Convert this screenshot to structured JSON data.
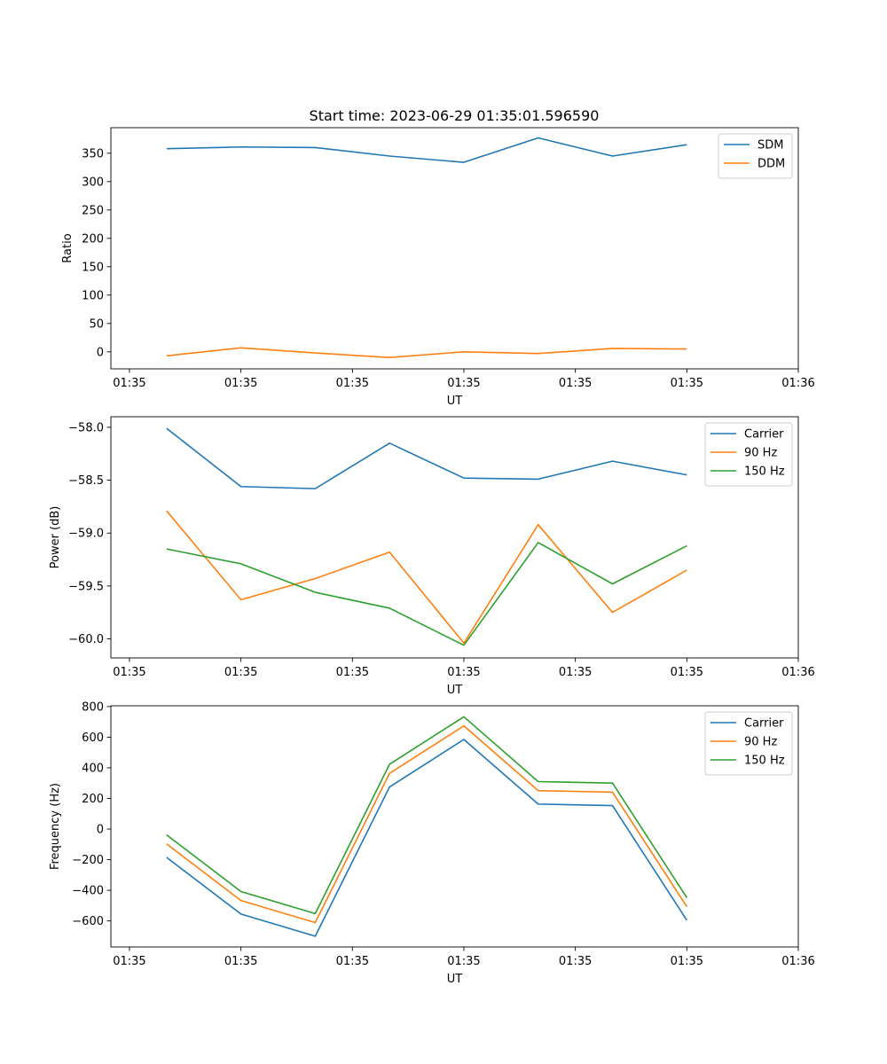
{
  "suptitle": "Start time: 2023-06-29 01:35:01.596590",
  "chart_data": [
    {
      "type": "line",
      "title": "Start time: 2023-06-29 01:35:01.596590",
      "xlabel": "UT",
      "ylabel": "Ratio",
      "x": [
        1,
        2,
        3,
        4,
        5,
        6,
        7,
        8
      ],
      "xlim": [
        0.25,
        9.5
      ],
      "ylim": [
        -30,
        395
      ],
      "yticks": [
        0,
        50,
        100,
        150,
        200,
        250,
        300,
        350
      ],
      "ytick_labels": [
        "0",
        "50",
        "100",
        "150",
        "200",
        "250",
        "300",
        "350"
      ],
      "xticks": [
        0.5,
        2,
        3.5,
        5,
        6.5,
        8,
        9.5
      ],
      "xtick_labels": [
        "01:35",
        "01:35",
        "01:35",
        "01:35",
        "01:35",
        "01:35",
        "01:36"
      ],
      "legend_position": "upper right",
      "grid": false,
      "series": [
        {
          "name": "SDM",
          "color": "#1f77b4",
          "values": [
            358,
            361,
            360,
            345,
            334,
            377,
            345,
            365
          ]
        },
        {
          "name": "DDM",
          "color": "#ff7f0e",
          "values": [
            -7,
            7,
            -2,
            -10,
            0,
            -3,
            6,
            5
          ]
        }
      ]
    },
    {
      "type": "line",
      "xlabel": "UT",
      "ylabel": "Power (dB)",
      "x": [
        1,
        2,
        3,
        4,
        5,
        6,
        7,
        8
      ],
      "xlim": [
        0.25,
        9.5
      ],
      "ylim": [
        -60.18,
        -57.9
      ],
      "yticks": [
        -60.0,
        -59.5,
        -59.0,
        -58.5,
        -58.0
      ],
      "ytick_labels": [
        "−60.0",
        "−59.5",
        "−59.0",
        "−58.5",
        "−58.0"
      ],
      "xticks": [
        0.5,
        2,
        3.5,
        5,
        6.5,
        8,
        9.5
      ],
      "xtick_labels": [
        "01:35",
        "01:35",
        "01:35",
        "01:35",
        "01:35",
        "01:35",
        "01:36"
      ],
      "legend_position": "upper right",
      "grid": false,
      "series": [
        {
          "name": "Carrier",
          "color": "#1f77b4",
          "values": [
            -58.01,
            -58.56,
            -58.58,
            -58.15,
            -58.48,
            -58.49,
            -58.32,
            -58.45
          ]
        },
        {
          "name": "90 Hz",
          "color": "#ff7f0e",
          "values": [
            -58.79,
            -59.63,
            -59.43,
            -59.18,
            -60.04,
            -58.92,
            -59.75,
            -59.35
          ]
        },
        {
          "name": "150 Hz",
          "color": "#2ca02c",
          "values": [
            -59.15,
            -59.29,
            -59.56,
            -59.71,
            -60.06,
            -59.09,
            -59.48,
            -59.12
          ]
        }
      ]
    },
    {
      "type": "line",
      "xlabel": "UT",
      "ylabel": "Frequency (Hz)",
      "x": [
        1,
        2,
        3,
        4,
        5,
        6,
        7,
        8
      ],
      "xlim": [
        0.25,
        9.5
      ],
      "ylim": [
        -770,
        805
      ],
      "yticks": [
        -600,
        -400,
        -200,
        0,
        200,
        400,
        600,
        800
      ],
      "ytick_labels": [
        "−600",
        "−400",
        "−200",
        "0",
        "200",
        "400",
        "600",
        "800"
      ],
      "xticks": [
        0.5,
        2,
        3.5,
        5,
        6.5,
        8,
        9.5
      ],
      "xtick_labels": [
        "01:35",
        "01:35",
        "01:35",
        "01:35",
        "01:35",
        "01:35",
        "01:36"
      ],
      "legend_position": "upper right",
      "grid": false,
      "series": [
        {
          "name": "Carrier",
          "color": "#1f77b4",
          "values": [
            -185,
            -555,
            -700,
            275,
            585,
            163,
            153,
            -595
          ]
        },
        {
          "name": "90 Hz",
          "color": "#ff7f0e",
          "values": [
            -97,
            -467,
            -611,
            364,
            674,
            251,
            241,
            -507
          ]
        },
        {
          "name": "150 Hz",
          "color": "#2ca02c",
          "values": [
            -38,
            -408,
            -552,
            423,
            733,
            310,
            300,
            -448
          ]
        }
      ]
    }
  ]
}
